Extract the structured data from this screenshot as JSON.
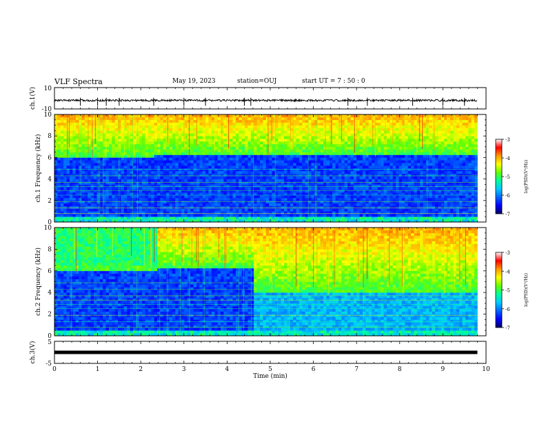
{
  "header": {
    "title": "VLF Spectra",
    "date": "May 19, 2023",
    "station": "station=OUJ",
    "start_ut": "start  UT =   7 : 50 : 0"
  },
  "colors": {
    "background": "#ffffff",
    "axis": "#000000",
    "colormap": [
      "#000066",
      "#0000ff",
      "#0066ff",
      "#00ccff",
      "#00ff99",
      "#66ff00",
      "#ffff00",
      "#ff9900",
      "#ff0000",
      "#ffffff"
    ]
  },
  "chart_data": [
    {
      "type": "line",
      "panel": "ch1-waveform",
      "ylabel": "ch.1(V)",
      "ylim": [
        -10,
        10
      ],
      "ytick_labels": [
        "10",
        "-10"
      ],
      "xlim": [
        0,
        10
      ],
      "baseline": -2,
      "spike_times_min": [
        0.6,
        1.0,
        1.2,
        1.5,
        2.3,
        3.0,
        3.5,
        4.4,
        4.55,
        6.8,
        7.25,
        8.3,
        9.0,
        9.5
      ]
    },
    {
      "type": "heatmap",
      "panel": "ch1-spectrogram",
      "ylabel": "ch.1  Frequency  (kHz)",
      "ylim": [
        0,
        10
      ],
      "ytick_labels": [
        "0",
        "2",
        "4",
        "6",
        "8",
        "10"
      ],
      "xlim": [
        0,
        10
      ],
      "emission_band_khz": [
        {
          "t_start": 0,
          "t_end": 2.3,
          "f_low": 5.9
        },
        {
          "t_start": 2.3,
          "t_end": 9.8,
          "f_low": 6.1
        }
      ],
      "colorbar": {
        "label": "log(PSD)(V²/Hz)",
        "range": [
          -7,
          -3
        ],
        "tick_labels": [
          "-3",
          "-4",
          "-5",
          "-6",
          "-7"
        ]
      }
    },
    {
      "type": "heatmap",
      "panel": "ch2-spectrogram",
      "ylabel": "ch.2  Frequency  (kHz)",
      "ylim": [
        0,
        10
      ],
      "ytick_labels": [
        "0",
        "2",
        "4",
        "6",
        "8",
        "10"
      ],
      "xlim": [
        0,
        10
      ],
      "emission_band_khz": [
        {
          "t_start": 0,
          "t_end": 2.35,
          "f_low": 5.9,
          "f_high": 6.5
        },
        {
          "t_start": 2.35,
          "t_end": 4.55,
          "f_low": 6.2
        },
        {
          "t_start": 4.55,
          "t_end": 9.8,
          "f_low": 3.8
        }
      ],
      "colorbar": {
        "label": "log(PSD)(V²/Hz)",
        "range": [
          -7,
          -3
        ],
        "tick_labels": [
          "-3",
          "-4",
          "-5",
          "-6",
          "-7"
        ]
      }
    },
    {
      "type": "line",
      "panel": "ch3-waveform",
      "ylabel": "ch.3(V)",
      "ylim": [
        -5,
        5
      ],
      "ytick_labels": [
        "5",
        "-5"
      ],
      "xlim": [
        0,
        10
      ],
      "baseline": 0
    }
  ],
  "xaxis": {
    "label": "Time  (min)",
    "tick_labels": [
      "0",
      "1",
      "2",
      "3",
      "4",
      "5",
      "6",
      "7",
      "8",
      "9",
      "10"
    ],
    "data_end_min": 9.8
  }
}
